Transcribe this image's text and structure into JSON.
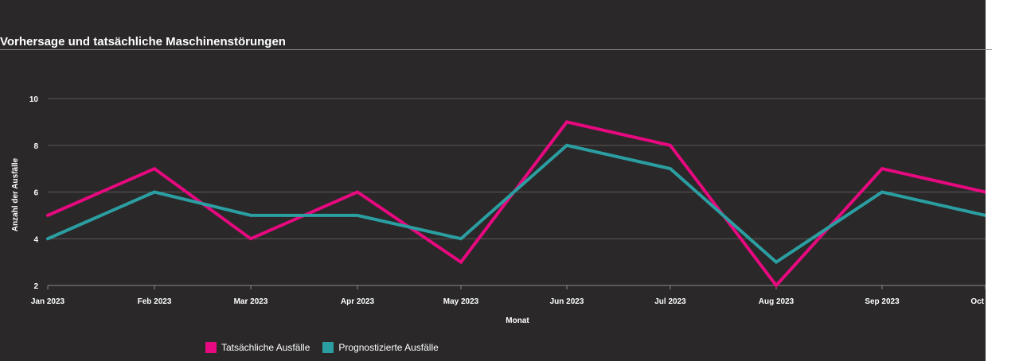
{
  "chart_data": {
    "type": "line",
    "title": "Vorhersage und tatsächliche Maschinenstörungen",
    "xlabel": "Monat",
    "ylabel": "Anzahl der Ausfälle",
    "categories": [
      "Jan 2023",
      "Feb 2023",
      "Mar 2023",
      "Apr 2023",
      "May 2023",
      "Jun 2023",
      "Jul 2023",
      "Aug 2023",
      "Sep 2023",
      "Oct"
    ],
    "y_ticks": [
      "2",
      "4",
      "6",
      "8",
      "10"
    ],
    "ylim": [
      2,
      10
    ],
    "grid": "horizontal",
    "legend_position": "bottom-left",
    "series": [
      {
        "name": "Tatsächliche Ausfälle",
        "color": "#e6097f",
        "values": [
          5,
          7,
          4,
          6,
          3,
          9,
          8,
          2,
          7,
          6
        ]
      },
      {
        "name": "Prognostizierte Ausfälle",
        "color": "#2b9ea1",
        "values": [
          4,
          6,
          5,
          5,
          4,
          8,
          7,
          3,
          6,
          5
        ]
      }
    ]
  }
}
